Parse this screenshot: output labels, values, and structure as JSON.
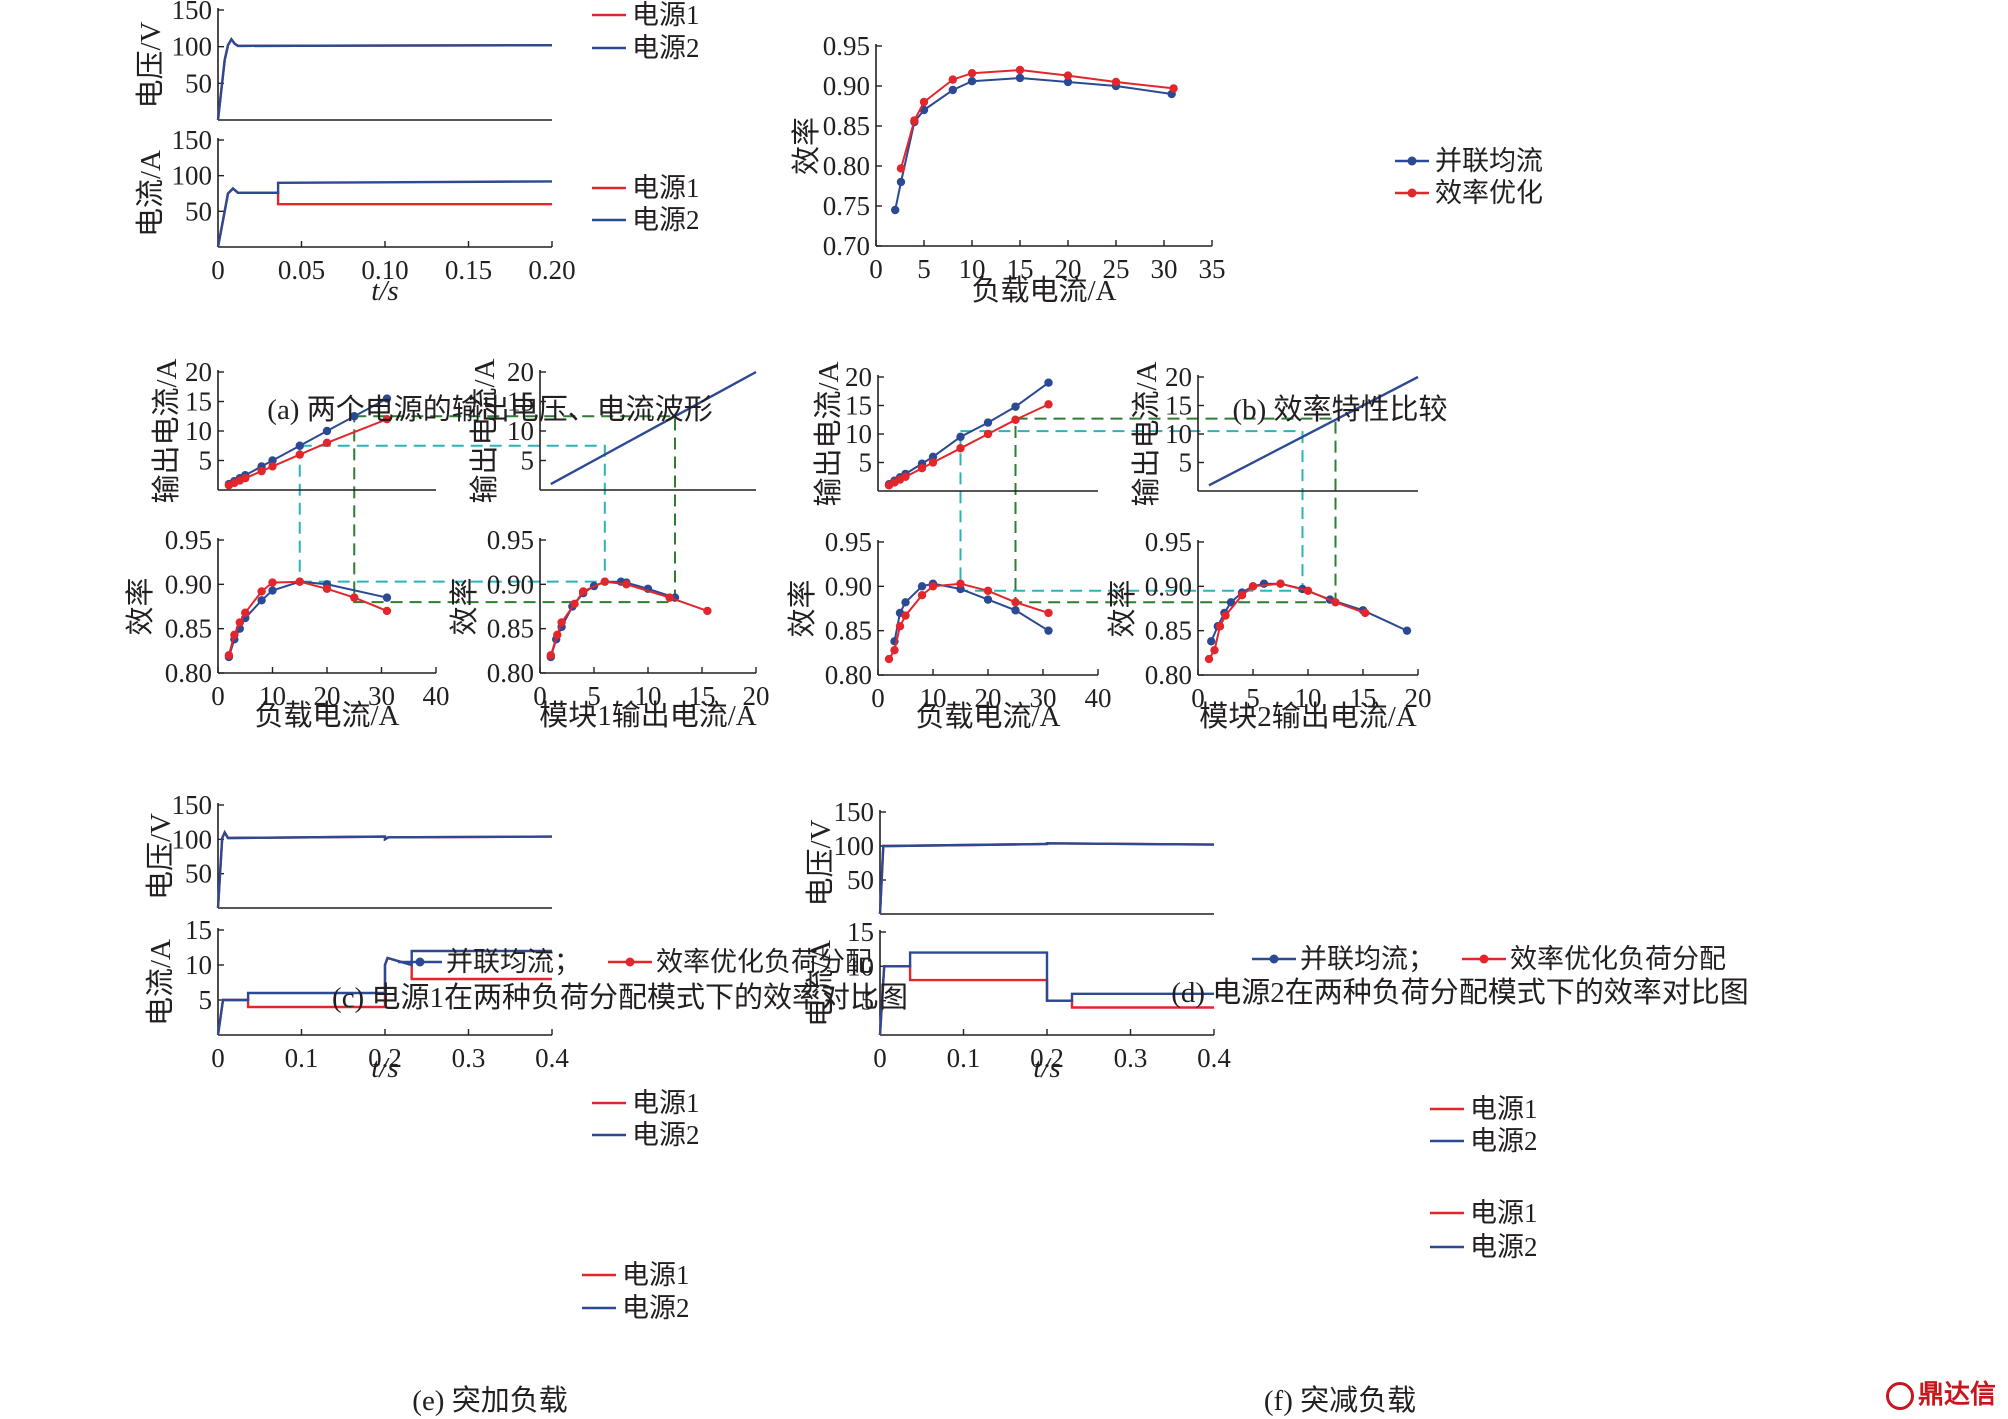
{
  "colors": {
    "red": "#e3262c",
    "blue": "#2b4a93",
    "teal": "#2bb3b9",
    "green": "#2e7d32",
    "axis": "#231f20"
  },
  "legend": {
    "src1": "电源1",
    "src2": "电源2",
    "parallel": "并联均流",
    "opt": "效率优化",
    "bottom": "并联均流；效率优化负荷分配"
  },
  "captions": {
    "a": "(a) 两个电源的输出电压、电流波形",
    "b": "(b) 效率特性比较",
    "c": "(c) 电源1在两种负荷分配模式下的效率对比图",
    "d": "(d) 电源2在两种负荷分配模式下的效率对比图",
    "e": "(e) 突加负载",
    "f": "(f) 突减负载"
  },
  "watermark": "鼎达信",
  "chart_data": [
    {
      "id": "a-voltage",
      "type": "line",
      "ylabel": "电压/V",
      "xlim": [
        0,
        0.2
      ],
      "ylim": [
        0,
        150
      ],
      "yticks": [
        "50",
        "100",
        "150"
      ],
      "series": [
        {
          "name": "电源1",
          "x": [
            0,
            0.004,
            0.006,
            0.008,
            0.01,
            0.012,
            0.2
          ],
          "values": [
            0,
            82,
            102,
            110,
            104,
            101,
            102
          ]
        },
        {
          "name": "电源2",
          "x": [
            0,
            0.004,
            0.006,
            0.008,
            0.01,
            0.012,
            0.2
          ],
          "values": [
            0,
            82,
            102,
            110,
            104,
            101,
            102
          ]
        }
      ]
    },
    {
      "id": "a-current",
      "type": "line",
      "ylabel": "电流/A",
      "xlabel": "t/s",
      "xlim": [
        0,
        0.2
      ],
      "ylim": [
        0,
        150
      ],
      "xticks": [
        "0",
        "0.05",
        "0.10",
        "0.15",
        "0.20"
      ],
      "yticks": [
        "50",
        "100",
        "150"
      ],
      "series": [
        {
          "name": "电源1",
          "x": [
            0,
            0.006,
            0.009,
            0.012,
            0.036,
            0.036,
            0.2
          ],
          "values": [
            0,
            75,
            82,
            76,
            76,
            60,
            60
          ]
        },
        {
          "name": "电源2",
          "x": [
            0,
            0.006,
            0.009,
            0.012,
            0.036,
            0.036,
            0.2
          ],
          "values": [
            0,
            75,
            82,
            76,
            76,
            90,
            92
          ]
        }
      ]
    },
    {
      "id": "b",
      "type": "line",
      "xlabel": "负载电流/A",
      "ylabel": "效率",
      "xlim": [
        0,
        35
      ],
      "ylim": [
        0.7,
        0.95
      ],
      "xticks": [
        "0",
        "5",
        "10",
        "15",
        "20",
        "25",
        "30",
        "35"
      ],
      "yticks": [
        "0.70",
        "0.75",
        "0.80",
        "0.85",
        "0.90",
        "0.95"
      ],
      "series": [
        {
          "name": "并联均流",
          "x": [
            2,
            2.6,
            4,
            5,
            8,
            10,
            15,
            20,
            25,
            30.8
          ],
          "values": [
            0.745,
            0.78,
            0.855,
            0.87,
            0.895,
            0.906,
            0.91,
            0.905,
            0.9,
            0.89
          ]
        },
        {
          "name": "效率优化",
          "x": [
            2.6,
            4,
            5,
            8,
            10,
            15,
            20,
            25,
            31
          ],
          "values": [
            0.797,
            0.857,
            0.88,
            0.908,
            0.916,
            0.92,
            0.913,
            0.905,
            0.897
          ]
        }
      ]
    },
    {
      "id": "c-top-left",
      "type": "line",
      "ylabel": "输出电流/A",
      "xlim": [
        0,
        40
      ],
      "ylim": [
        0,
        20
      ],
      "yticks": [
        "5",
        "10",
        "15",
        "20"
      ],
      "series": [
        {
          "name": "并联均流",
          "x": [
            2,
            3,
            4,
            5,
            8,
            10,
            15,
            20,
            25,
            31
          ],
          "values": [
            1,
            1.5,
            2,
            2.5,
            4,
            5,
            7.5,
            10,
            12.5,
            15.5
          ]
        },
        {
          "name": "效率优化负荷分配",
          "x": [
            2,
            3,
            4,
            5,
            8,
            10,
            15,
            20,
            31
          ],
          "values": [
            0.8,
            1.2,
            1.6,
            2,
            3.2,
            4,
            6,
            8,
            12
          ]
        }
      ]
    },
    {
      "id": "c-top-right",
      "type": "line",
      "ylabel": "输出电流/A",
      "xlim": [
        0,
        20
      ],
      "ylim": [
        0,
        20
      ],
      "yticks": [
        "5",
        "10",
        "15",
        "20"
      ],
      "series": [
        {
          "name": "",
          "x": [
            1,
            20
          ],
          "values": [
            1,
            20
          ]
        }
      ]
    },
    {
      "id": "c-bottom-left",
      "type": "line",
      "xlabel": "负载电流/A",
      "ylabel": "效率",
      "xlim": [
        0,
        40
      ],
      "ylim": [
        0.8,
        0.95
      ],
      "xticks": [
        "0",
        "10",
        "20",
        "30",
        "40"
      ],
      "yticks": [
        "0.80",
        "0.85",
        "0.90",
        "0.95"
      ],
      "series": [
        {
          "name": "并联均流",
          "x": [
            2,
            3,
            4,
            5,
            8,
            10,
            15,
            20,
            31
          ],
          "values": [
            0.818,
            0.838,
            0.85,
            0.862,
            0.882,
            0.893,
            0.903,
            0.9,
            0.885
          ]
        },
        {
          "name": "效率优化负荷分配",
          "x": [
            2,
            3,
            4,
            5,
            8,
            10,
            15,
            20,
            25,
            31
          ],
          "values": [
            0.82,
            0.843,
            0.857,
            0.868,
            0.892,
            0.902,
            0.903,
            0.895,
            0.885,
            0.87
          ]
        }
      ]
    },
    {
      "id": "c-bottom-right",
      "type": "line",
      "xlabel": "模块1输出电流/A",
      "ylabel": "效率",
      "xlim": [
        0,
        20
      ],
      "ylim": [
        0.8,
        0.95
      ],
      "xticks": [
        "0",
        "5",
        "10",
        "15",
        "20"
      ],
      "yticks": [
        "0.80",
        "0.85",
        "0.90",
        "0.95"
      ],
      "series": [
        {
          "name": "并联均流",
          "x": [
            1,
            1.5,
            2,
            3,
            4,
            5,
            6,
            7.5,
            8,
            10,
            12.5
          ],
          "values": [
            0.818,
            0.838,
            0.852,
            0.875,
            0.89,
            0.898,
            0.903,
            0.903,
            0.902,
            0.895,
            0.885
          ]
        },
        {
          "name": "效率优化负荷分配",
          "x": [
            1,
            1.6,
            2,
            3.2,
            4,
            6,
            8,
            12,
            15.5
          ],
          "values": [
            0.82,
            0.843,
            0.857,
            0.878,
            0.892,
            0.903,
            0.9,
            0.885,
            0.87
          ]
        }
      ]
    },
    {
      "id": "d-top-left",
      "type": "line",
      "ylabel": "输出电流/A",
      "xlim": [
        0,
        40
      ],
      "ylim": [
        0,
        20
      ],
      "yticks": [
        "5",
        "10",
        "15",
        "20"
      ],
      "series": [
        {
          "name": "并联均流",
          "x": [
            2,
            3,
            4,
            5,
            8,
            10,
            15,
            20,
            25,
            31
          ],
          "values": [
            1.2,
            1.8,
            2.4,
            3,
            4.8,
            6,
            9.5,
            12,
            14.8,
            19
          ]
        },
        {
          "name": "效率优化负荷分配",
          "x": [
            2,
            3,
            4,
            5,
            8,
            10,
            15,
            20,
            25,
            31
          ],
          "values": [
            1,
            1.5,
            2,
            2.5,
            4,
            5,
            7.5,
            10,
            12.5,
            15.2
          ]
        }
      ]
    },
    {
      "id": "d-top-right",
      "type": "line",
      "ylabel": "输出电流/A",
      "xlim": [
        0,
        20
      ],
      "ylim": [
        0,
        20
      ],
      "yticks": [
        "5",
        "10",
        "15",
        "20"
      ],
      "series": [
        {
          "name": "",
          "x": [
            1,
            20
          ],
          "values": [
            1,
            20
          ]
        }
      ]
    },
    {
      "id": "d-bottom-left",
      "type": "line",
      "xlabel": "负载电流/A",
      "ylabel": "效率",
      "xlim": [
        0,
        40
      ],
      "ylim": [
        0.8,
        0.95
      ],
      "xticks": [
        "0",
        "10",
        "20",
        "30",
        "40"
      ],
      "yticks": [
        "0.80",
        "0.85",
        "0.90",
        "0.95"
      ],
      "series": [
        {
          "name": "并联均流",
          "x": [
            3,
            4,
            5,
            8,
            10,
            15,
            20,
            25,
            31
          ],
          "values": [
            0.838,
            0.87,
            0.882,
            0.9,
            0.903,
            0.897,
            0.885,
            0.873,
            0.85
          ]
        },
        {
          "name": "效率优化负荷分配",
          "x": [
            2,
            3,
            4,
            5,
            8,
            10,
            15,
            20,
            25,
            31
          ],
          "values": [
            0.818,
            0.828,
            0.855,
            0.867,
            0.89,
            0.9,
            0.903,
            0.895,
            0.882,
            0.87
          ]
        }
      ]
    },
    {
      "id": "d-bottom-right",
      "type": "line",
      "xlabel": "模块2输出电流/A",
      "ylabel": "效率",
      "xlim": [
        0,
        20
      ],
      "ylim": [
        0.8,
        0.95
      ],
      "xticks": [
        "0",
        "5",
        "10",
        "15",
        "20"
      ],
      "yticks": [
        "0.80",
        "0.85",
        "0.90",
        "0.95"
      ],
      "series": [
        {
          "name": "并联均流",
          "x": [
            1.2,
            1.8,
            2.4,
            3,
            4,
            5,
            6,
            7.5,
            9.5,
            12,
            15,
            19
          ],
          "values": [
            0.838,
            0.855,
            0.87,
            0.882,
            0.893,
            0.9,
            0.903,
            0.903,
            0.897,
            0.885,
            0.873,
            0.85
          ]
        },
        {
          "name": "效率优化负荷分配",
          "x": [
            1,
            1.5,
            2,
            2.5,
            4,
            5,
            7.5,
            10,
            12.5,
            15.2
          ],
          "values": [
            0.818,
            0.828,
            0.855,
            0.867,
            0.89,
            0.9,
            0.903,
            0.895,
            0.882,
            0.87
          ]
        }
      ]
    },
    {
      "id": "e-voltage",
      "type": "line",
      "ylabel": "电压/V",
      "xlim": [
        0,
        0.4
      ],
      "ylim": [
        0,
        150
      ],
      "yticks": [
        "50",
        "100",
        "150"
      ],
      "series": [
        {
          "name": "电源1",
          "x": [
            0,
            0.005,
            0.008,
            0.012,
            0.2,
            0.2,
            0.204,
            0.4
          ],
          "values": [
            0,
            102,
            110,
            102,
            104,
            100,
            103,
            104
          ]
        },
        {
          "name": "电源2",
          "x": [
            0,
            0.005,
            0.008,
            0.012,
            0.2,
            0.2,
            0.204,
            0.4
          ],
          "values": [
            0,
            102,
            110,
            102,
            104,
            100,
            103,
            104
          ]
        }
      ]
    },
    {
      "id": "e-current",
      "type": "line",
      "ylabel": "电流/A",
      "xlabel": "t/s",
      "xlim": [
        0,
        0.4
      ],
      "ylim": [
        0,
        15
      ],
      "xticks": [
        "0",
        "0.1",
        "0.2",
        "0.3",
        "0.4"
      ],
      "yticks": [
        "5",
        "10",
        "15"
      ],
      "series": [
        {
          "name": "电源1",
          "x": [
            0,
            0.006,
            0.036,
            0.036,
            0.2,
            0.2,
            0.203,
            0.232,
            0.232,
            0.4
          ],
          "values": [
            0,
            5,
            5,
            4,
            4,
            10,
            11,
            10,
            8,
            8
          ]
        },
        {
          "name": "电源2",
          "x": [
            0,
            0.006,
            0.036,
            0.036,
            0.2,
            0.2,
            0.203,
            0.232,
            0.232,
            0.4
          ],
          "values": [
            0,
            5,
            5,
            6,
            6,
            10,
            11,
            10,
            12,
            12
          ]
        }
      ]
    },
    {
      "id": "f-voltage",
      "type": "line",
      "ylabel": "电压/V",
      "xlim": [
        0,
        0.4
      ],
      "ylim": [
        0,
        150
      ],
      "yticks": [
        "50",
        "100",
        "150"
      ],
      "series": [
        {
          "name": "电源1",
          "x": [
            0,
            0.004,
            0.01,
            0.2,
            0.2,
            0.4
          ],
          "values": [
            0,
            100,
            100,
            103,
            104,
            102
          ]
        },
        {
          "name": "电源2",
          "x": [
            0,
            0.004,
            0.01,
            0.2,
            0.2,
            0.4
          ],
          "values": [
            0,
            100,
            100,
            103,
            104,
            102
          ]
        }
      ]
    },
    {
      "id": "f-current",
      "type": "line",
      "ylabel": "电流/A",
      "xlabel": "t/s",
      "xlim": [
        0,
        0.4
      ],
      "ylim": [
        0,
        15
      ],
      "xticks": [
        "0",
        "0.1",
        "0.2",
        "0.3",
        "0.4"
      ],
      "yticks": [
        "5",
        "10",
        "15"
      ],
      "series": [
        {
          "name": "电源1",
          "x": [
            0,
            0.005,
            0.036,
            0.036,
            0.2,
            0.2,
            0.23,
            0.23,
            0.4
          ],
          "values": [
            0,
            10,
            10,
            8,
            8,
            5,
            5,
            4,
            4
          ]
        },
        {
          "name": "电源2",
          "x": [
            0,
            0.005,
            0.036,
            0.036,
            0.2,
            0.2,
            0.23,
            0.23,
            0.4
          ],
          "values": [
            0,
            10,
            10,
            12,
            12,
            5,
            5,
            6,
            6
          ]
        }
      ]
    }
  ]
}
